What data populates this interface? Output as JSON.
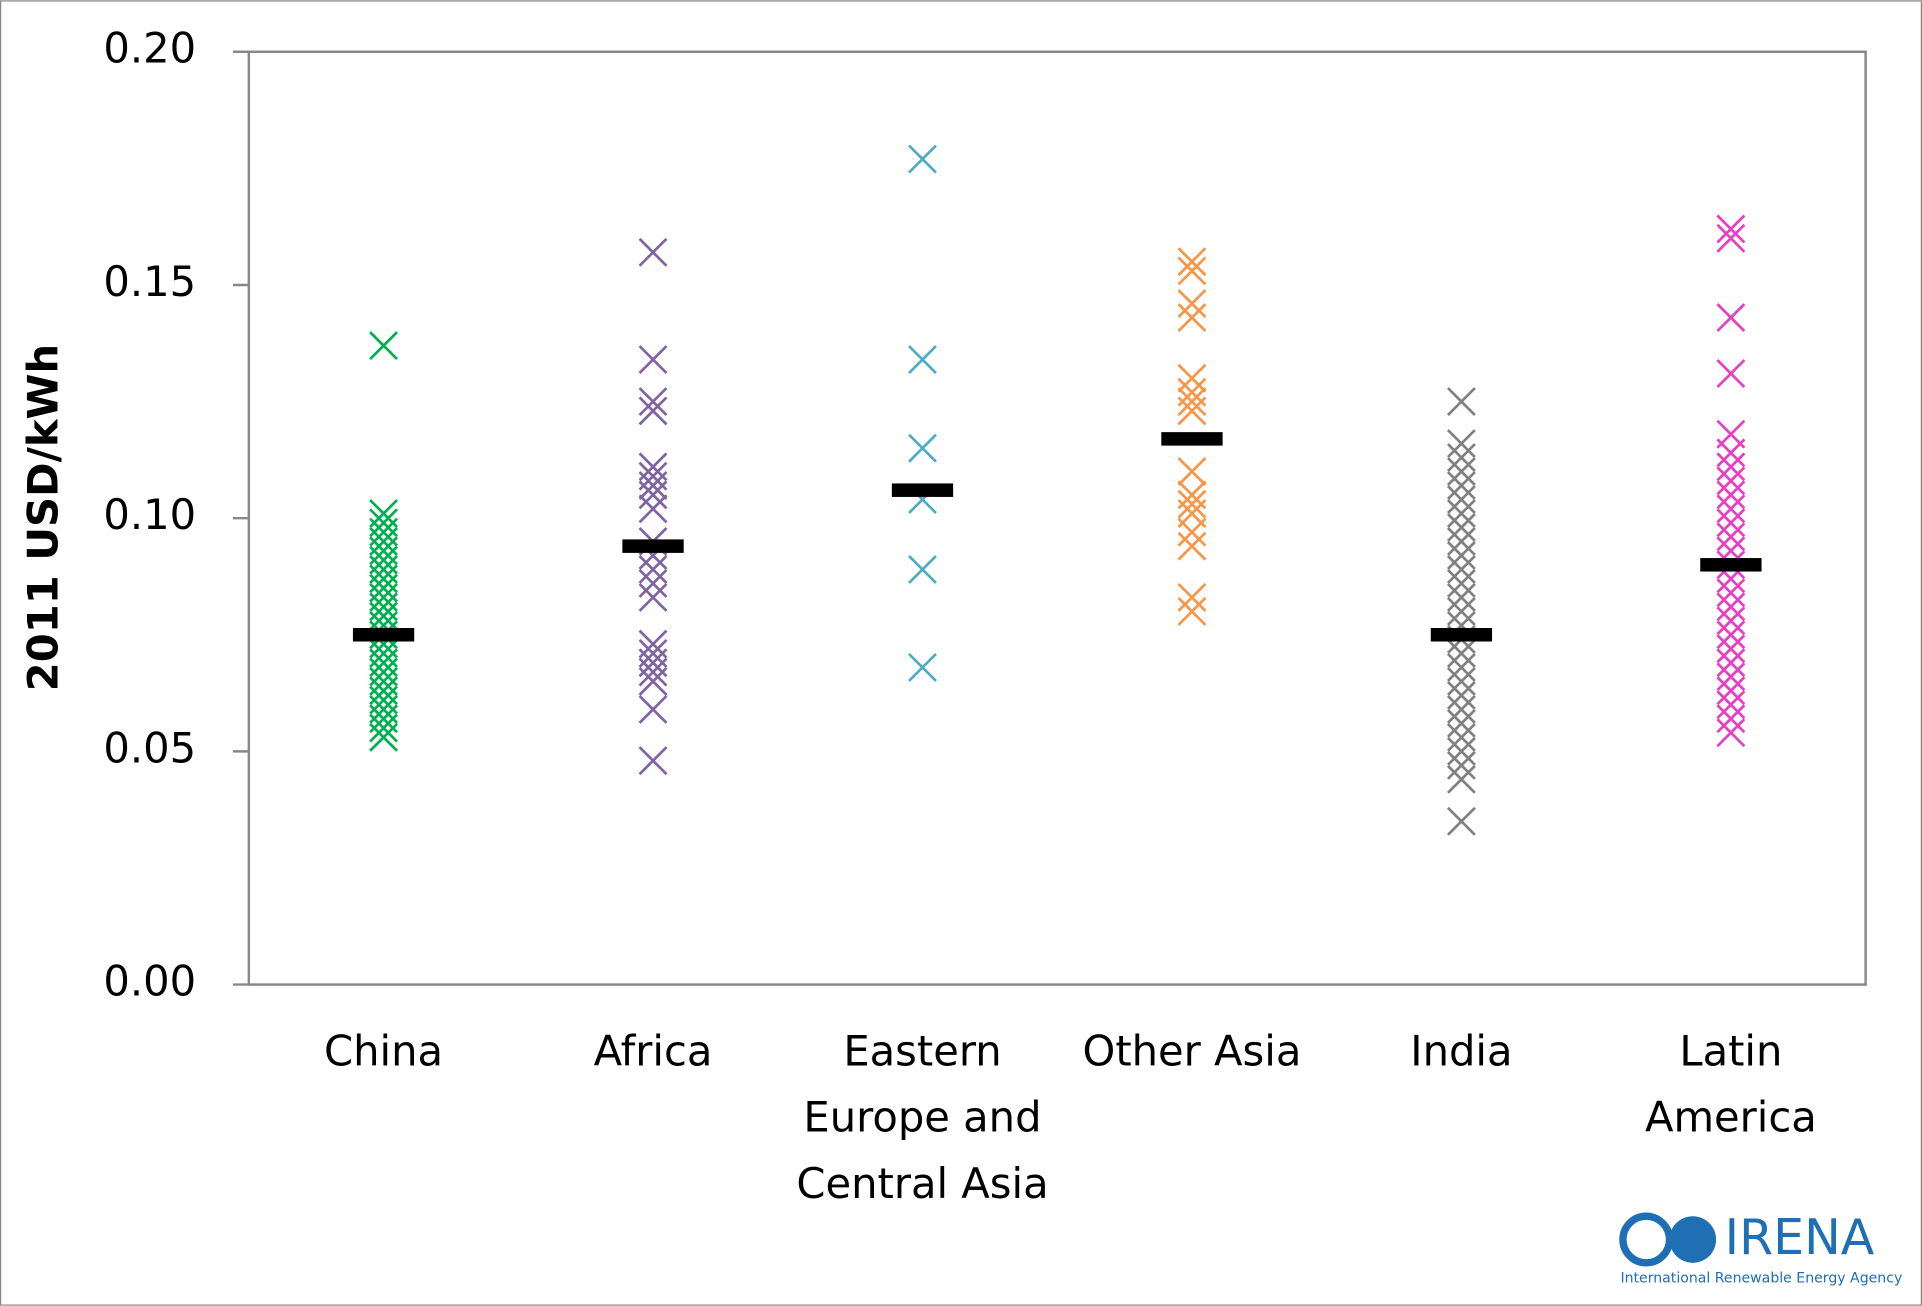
{
  "chart_data": {
    "type": "strip",
    "y_label": "2011 USD/kWh",
    "categories": [
      "China",
      "Africa",
      "Eastern Europe and Central Asia",
      "Other Asia",
      "India",
      "Latin America"
    ],
    "groups": [
      {
        "color": "#00b050",
        "mean": 0.075,
        "values": [
          0.137,
          0.101,
          0.099,
          0.097,
          0.095,
          0.093,
          0.091,
          0.089,
          0.087,
          0.085,
          0.083,
          0.081,
          0.079,
          0.077,
          0.075,
          0.073,
          0.071,
          0.069,
          0.067,
          0.065,
          0.063,
          0.061,
          0.059,
          0.057,
          0.055,
          0.053
        ]
      },
      {
        "color": "#8064a2",
        "mean": 0.094,
        "values": [
          0.157,
          0.134,
          0.125,
          0.123,
          0.111,
          0.109,
          0.107,
          0.105,
          0.102,
          0.095,
          0.092,
          0.089,
          0.086,
          0.083,
          0.073,
          0.071,
          0.069,
          0.067,
          0.065,
          0.059,
          0.048
        ]
      },
      {
        "color": "#4bacc6",
        "mean": 0.106,
        "values": [
          0.177,
          0.134,
          0.115,
          0.104,
          0.089,
          0.068
        ]
      },
      {
        "color": "#f79646",
        "mean": 0.117,
        "values": [
          0.155,
          0.153,
          0.146,
          0.143,
          0.13,
          0.127,
          0.125,
          0.123,
          0.11,
          0.105,
          0.103,
          0.101,
          0.097,
          0.094,
          0.083,
          0.08
        ]
      },
      {
        "color": "#808080",
        "mean": 0.075,
        "values": [
          0.125,
          0.116,
          0.113,
          0.11,
          0.107,
          0.104,
          0.101,
          0.098,
          0.095,
          0.092,
          0.089,
          0.086,
          0.083,
          0.08,
          0.077,
          0.074,
          0.071,
          0.068,
          0.065,
          0.062,
          0.059,
          0.056,
          0.053,
          0.05,
          0.047,
          0.044,
          0.035
        ]
      },
      {
        "color": "#e83ec1",
        "mean": 0.09,
        "values": [
          0.162,
          0.16,
          0.143,
          0.131,
          0.118,
          0.114,
          0.111,
          0.108,
          0.105,
          0.102,
          0.099,
          0.096,
          0.093,
          0.09,
          0.087,
          0.084,
          0.081,
          0.078,
          0.075,
          0.072,
          0.069,
          0.066,
          0.063,
          0.06,
          0.057,
          0.054
        ]
      }
    ],
    "ylim": [
      0,
      0.2
    ],
    "yticks": [
      {
        "value": 0,
        "label": "0.00"
      },
      {
        "value": 0.05,
        "label": "0.05"
      },
      {
        "value": 0.1,
        "label": "0.10"
      },
      {
        "value": 0.15,
        "label": "0.15"
      },
      {
        "value": 0.2,
        "label": "0.20"
      }
    ],
    "mean_color": "#000000"
  },
  "logo": {
    "name": "IRENA",
    "subtitle": "International Renewable Energy Agency"
  }
}
